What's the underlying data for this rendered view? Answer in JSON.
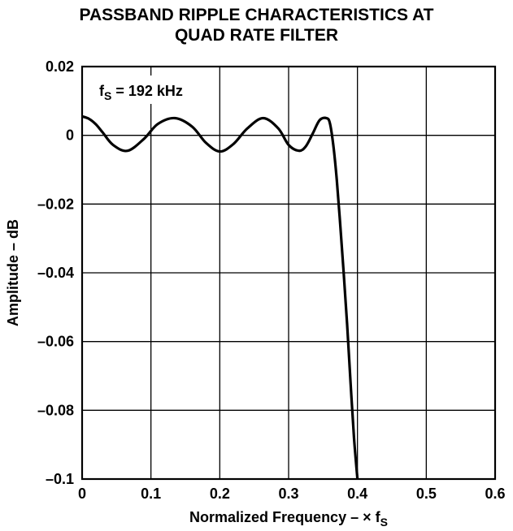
{
  "chart_data": {
    "type": "line",
    "title_line1": "PASSBAND RIPPLE CHARACTERISTICS AT",
    "title_line2": "QUAD RATE FILTER",
    "xlabel": "Normalized Frequency – × f",
    "xlabel_sub": "S",
    "ylabel": "Amplitude – dB",
    "annotation": "f",
    "annotation_sub": "S",
    "annotation_rest": " = 192 kHz",
    "xlim": [
      0,
      0.6
    ],
    "ylim": [
      -0.1,
      0.02
    ],
    "x_ticks": [
      "0",
      "0.1",
      "0.2",
      "0.3",
      "0.4",
      "0.5",
      "0.6"
    ],
    "y_ticks": [
      "0.02",
      "0",
      "–0.02",
      "–0.04",
      "–0.06",
      "–0.08",
      "–0.1"
    ],
    "grid": true,
    "series": [
      {
        "x": [
          0,
          0.01,
          0.02,
          0.03,
          0.045,
          0.066,
          0.09,
          0.11,
          0.135,
          0.16,
          0.18,
          0.2,
          0.22,
          0.24,
          0.263,
          0.285,
          0.3,
          0.315,
          0.325,
          0.335,
          0.345,
          0.355,
          0.36,
          0.365,
          0.37,
          0.375,
          0.38,
          0.385,
          0.39,
          0.395,
          0.4
        ],
        "y": [
          0.0055,
          0.0048,
          0.0032,
          0.0008,
          -0.0028,
          -0.0045,
          -0.001,
          0.0033,
          0.005,
          0.0025,
          -0.0022,
          -0.0047,
          -0.0025,
          0.002,
          0.005,
          0.002,
          -0.0028,
          -0.0045,
          -0.0032,
          0.0005,
          0.0044,
          0.005,
          0.0035,
          -0.003,
          -0.013,
          -0.026,
          -0.04,
          -0.055,
          -0.072,
          -0.088,
          -0.1
        ]
      }
    ]
  }
}
